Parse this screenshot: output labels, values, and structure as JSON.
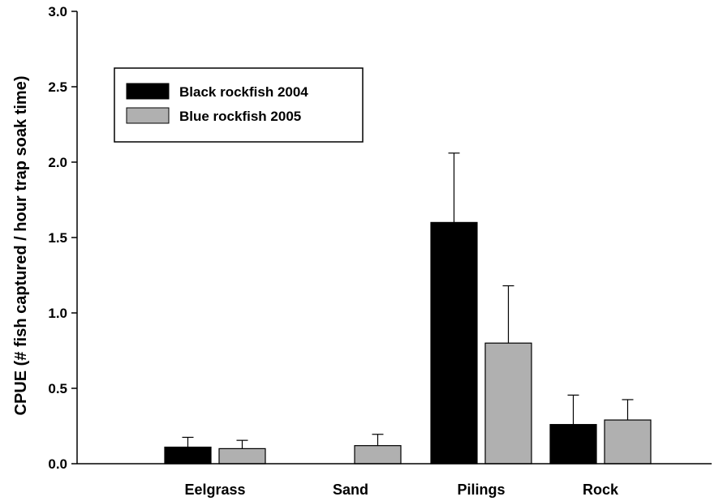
{
  "chart_data": {
    "type": "bar",
    "title": "",
    "xlabel": "",
    "ylabel": "CPUE (# fish captured / hour trap soak time)",
    "categories": [
      "Eelgrass",
      "Sand",
      "Pilings",
      "Rock"
    ],
    "ylim": [
      0,
      3.0
    ],
    "yticks": [
      "0.0",
      "0.5",
      "1.0",
      "1.5",
      "2.0",
      "2.5",
      "3.0"
    ],
    "legend_position": "top-left",
    "grid": false,
    "series": [
      {
        "name": "Black rockfish 2004",
        "color": "#000000",
        "values": [
          0.11,
          0.0,
          1.6,
          0.26
        ],
        "errors": [
          0.065,
          0.0,
          0.46,
          0.195
        ]
      },
      {
        "name": "Blue rockfish 2005",
        "color": "#b0b0b0",
        "values": [
          0.1,
          0.12,
          0.8,
          0.29
        ],
        "errors": [
          0.055,
          0.075,
          0.38,
          0.135
        ]
      }
    ]
  }
}
